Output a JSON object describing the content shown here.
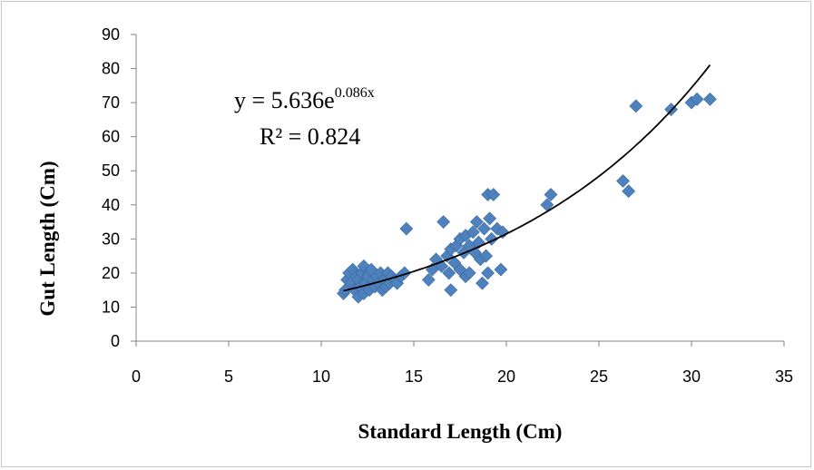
{
  "chart_data": {
    "type": "scatter",
    "title": "",
    "xlabel": "Standard Length (Cm)",
    "ylabel": "Gut Length (Cm)",
    "xlim": [
      0,
      35
    ],
    "ylim": [
      0,
      90
    ],
    "x_ticks": [
      "0",
      "5",
      "10",
      "15",
      "20",
      "25",
      "30",
      "35"
    ],
    "y_ticks": [
      "0",
      "10",
      "20",
      "30",
      "40",
      "50",
      "60",
      "70",
      "80",
      "90"
    ],
    "grid": false,
    "legend": "none",
    "marker_color": "#4F81BD",
    "marker": "diamond",
    "trendline": {
      "type": "exponential",
      "a": 5.636,
      "b": 0.086,
      "x_range": [
        11.2,
        31
      ],
      "color": "#000000",
      "equation_text_base": "y = 5.636e",
      "equation_text_exp": "0.086x",
      "r2_text": "R² = 0.824"
    },
    "points": [
      [
        11.2,
        14
      ],
      [
        11.3,
        15
      ],
      [
        11.4,
        18
      ],
      [
        11.5,
        20
      ],
      [
        11.6,
        17
      ],
      [
        11.7,
        21
      ],
      [
        11.8,
        15
      ],
      [
        11.9,
        19
      ],
      [
        12.0,
        13
      ],
      [
        12.0,
        18
      ],
      [
        12.1,
        16
      ],
      [
        12.2,
        20
      ],
      [
        12.3,
        14
      ],
      [
        12.3,
        22
      ],
      [
        12.4,
        17
      ],
      [
        12.5,
        19
      ],
      [
        12.6,
        15
      ],
      [
        12.7,
        21
      ],
      [
        12.8,
        18
      ],
      [
        12.9,
        16
      ],
      [
        13.0,
        19
      ],
      [
        13.1,
        17
      ],
      [
        13.2,
        20
      ],
      [
        13.3,
        15
      ],
      [
        13.4,
        18
      ],
      [
        13.5,
        16
      ],
      [
        13.6,
        20
      ],
      [
        13.7,
        17
      ],
      [
        13.8,
        19
      ],
      [
        14.0,
        18
      ],
      [
        14.1,
        17
      ],
      [
        14.3,
        19
      ],
      [
        14.5,
        20
      ],
      [
        14.6,
        33
      ],
      [
        15.8,
        18
      ],
      [
        16.0,
        21
      ],
      [
        16.2,
        24
      ],
      [
        16.5,
        22
      ],
      [
        16.6,
        35
      ],
      [
        16.8,
        25
      ],
      [
        16.9,
        20
      ],
      [
        17.0,
        15
      ],
      [
        17.0,
        27
      ],
      [
        17.2,
        23
      ],
      [
        17.3,
        28
      ],
      [
        17.5,
        21
      ],
      [
        17.5,
        30
      ],
      [
        17.7,
        26
      ],
      [
        17.8,
        19
      ],
      [
        17.8,
        31
      ],
      [
        18.0,
        20
      ],
      [
        18.0,
        28
      ],
      [
        18.2,
        32
      ],
      [
        18.3,
        26
      ],
      [
        18.4,
        35
      ],
      [
        18.5,
        29
      ],
      [
        18.6,
        24
      ],
      [
        18.7,
        17
      ],
      [
        18.8,
        33
      ],
      [
        18.9,
        25
      ],
      [
        19.0,
        20
      ],
      [
        19.0,
        43
      ],
      [
        19.1,
        36
      ],
      [
        19.2,
        30
      ],
      [
        19.3,
        43
      ],
      [
        19.5,
        33
      ],
      [
        19.7,
        21
      ],
      [
        19.8,
        32
      ],
      [
        22.2,
        40
      ],
      [
        22.4,
        43
      ],
      [
        26.3,
        47
      ],
      [
        26.6,
        44
      ],
      [
        27.0,
        69
      ],
      [
        28.9,
        68
      ],
      [
        30.0,
        70
      ],
      [
        30.3,
        71
      ],
      [
        31.0,
        71
      ]
    ]
  }
}
